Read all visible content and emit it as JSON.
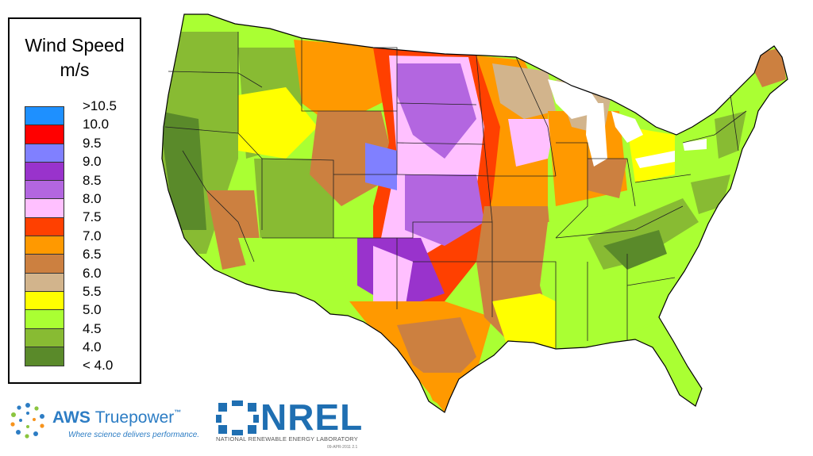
{
  "legend": {
    "title_line1": "Wind Speed",
    "title_line2": "m/s",
    "classes": [
      {
        "label": ">10.5",
        "color": "#1e90ff"
      },
      {
        "label": "10.0",
        "color": "#ff0000"
      },
      {
        "label": "9.5",
        "color": "#8080ff"
      },
      {
        "label": "9.0",
        "color": "#9933cc"
      },
      {
        "label": "8.5",
        "color": "#b366e0"
      },
      {
        "label": "8.0",
        "color": "#ffc0ff"
      },
      {
        "label": "7.5",
        "color": "#ff4000"
      },
      {
        "label": "7.0",
        "color": "#ff9900"
      },
      {
        "label": "6.5",
        "color": "#cc8040"
      },
      {
        "label": "6.0",
        "color": "#d2b48c"
      },
      {
        "label": "5.5",
        "color": "#ffff00"
      },
      {
        "label": "5.0",
        "color": "#aaff33"
      },
      {
        "label": "4.5",
        "color": "#88bb33"
      },
      {
        "label": "4.0",
        "color": "#5a8a2a"
      },
      {
        "label": "< 4.0",
        "color": "#5a8a2a"
      }
    ]
  },
  "logos": {
    "aws_name": "AWS",
    "aws_name2": "Truepower",
    "aws_tm": "™",
    "aws_tagline": "Where science delivers performance.",
    "nrel_name": "NREL",
    "nrel_subtitle": "NATIONAL RENEWABLE ENERGY LABORATORY",
    "nrel_code": "09-APR-2011 2.1"
  },
  "map": {
    "subject": "Contiguous United States wind speed map"
  }
}
